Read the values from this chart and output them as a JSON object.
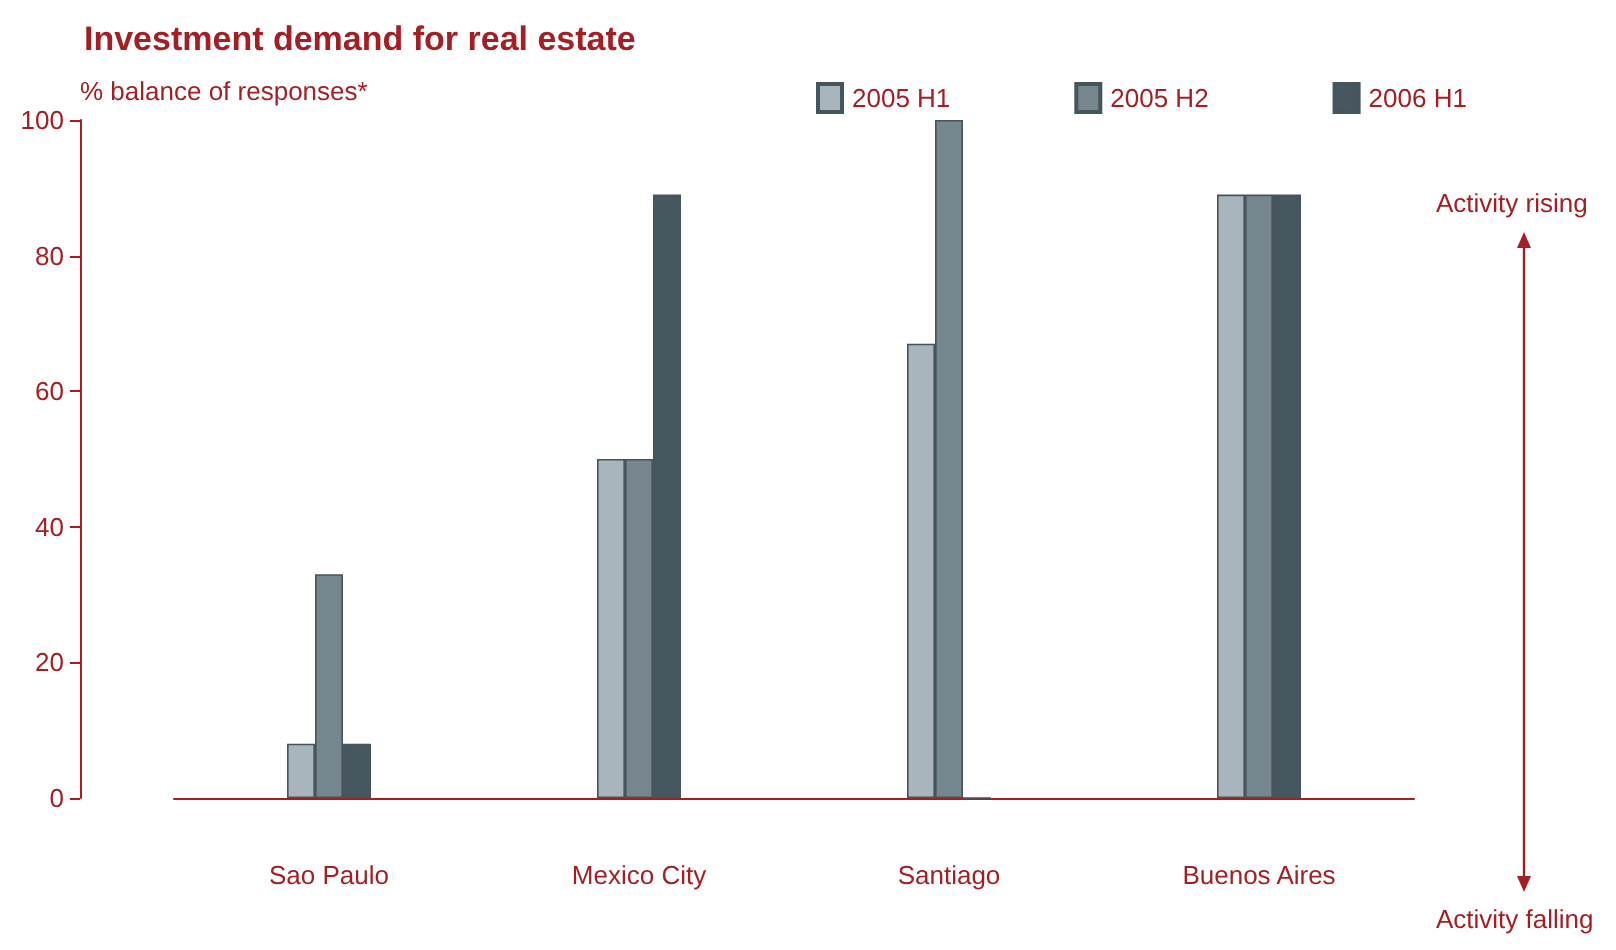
{
  "chart_data": {
    "type": "bar",
    "title": "Investment demand for real estate",
    "ylabel": "% balance of responses*",
    "categories": [
      "Sao Paulo",
      "Mexico City",
      "Santiago",
      "Buenos Aires"
    ],
    "series": [
      {
        "name": "2005 H1",
        "color": "#a9b5bc",
        "values": [
          8,
          50,
          67,
          89
        ]
      },
      {
        "name": "2005 H2",
        "color": "#76868f",
        "values": [
          33,
          50,
          100,
          89
        ]
      },
      {
        "name": "2006 H1",
        "color": "#47575f",
        "values": [
          8,
          89,
          0,
          89
        ]
      }
    ],
    "ylim": [
      0,
      100
    ],
    "yticks": [
      0,
      20,
      40,
      60,
      80,
      100
    ],
    "grid": false,
    "legend": "top right",
    "annotations": [
      "Activity rising",
      "Activity falling"
    ]
  }
}
